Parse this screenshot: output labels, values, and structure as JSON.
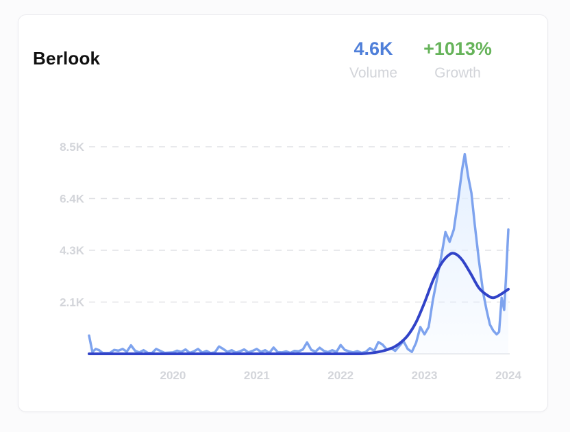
{
  "card": {
    "title": "Berlook",
    "volume": {
      "value": "4.6K",
      "label": "Volume"
    },
    "growth": {
      "value": "+1013%",
      "label": "Growth"
    }
  },
  "colors": {
    "raw_line": "#7ea3ee",
    "trend_line": "#3143c8",
    "area_fill": "#e3efff",
    "grid": "#e1e2e6",
    "volume_value": "#4f7fd9",
    "growth_value": "#66b35a"
  },
  "chart_data": {
    "type": "line",
    "title": "",
    "xlabel": "",
    "ylabel": "",
    "ylim": [
      0,
      8500
    ],
    "xlim": [
      2019.0,
      2024.0
    ],
    "grid": true,
    "y_ticks": [
      {
        "value": 2125,
        "label": "2.1K"
      },
      {
        "value": 4250,
        "label": "4.3K"
      },
      {
        "value": 6375,
        "label": "6.4K"
      },
      {
        "value": 8500,
        "label": "8.5K"
      }
    ],
    "x_ticks": [
      {
        "value": 2020,
        "label": "2020"
      },
      {
        "value": 2021,
        "label": "2021"
      },
      {
        "value": 2022,
        "label": "2022"
      },
      {
        "value": 2023,
        "label": "2023"
      },
      {
        "value": 2024,
        "label": "2024"
      }
    ],
    "series": [
      {
        "role": "raw",
        "points": [
          [
            2019.0,
            750
          ],
          [
            2019.04,
            80
          ],
          [
            2019.08,
            200
          ],
          [
            2019.12,
            150
          ],
          [
            2019.16,
            40
          ],
          [
            2019.2,
            30
          ],
          [
            2019.25,
            40
          ],
          [
            2019.3,
            160
          ],
          [
            2019.35,
            130
          ],
          [
            2019.4,
            200
          ],
          [
            2019.45,
            90
          ],
          [
            2019.5,
            350
          ],
          [
            2019.55,
            120
          ],
          [
            2019.6,
            60
          ],
          [
            2019.65,
            150
          ],
          [
            2019.7,
            40
          ],
          [
            2019.75,
            30
          ],
          [
            2019.8,
            200
          ],
          [
            2019.85,
            120
          ],
          [
            2019.9,
            40
          ],
          [
            2019.95,
            50
          ],
          [
            2020.0,
            60
          ],
          [
            2020.05,
            130
          ],
          [
            2020.1,
            80
          ],
          [
            2020.15,
            180
          ],
          [
            2020.2,
            40
          ],
          [
            2020.25,
            100
          ],
          [
            2020.3,
            200
          ],
          [
            2020.35,
            50
          ],
          [
            2020.4,
            120
          ],
          [
            2020.45,
            30
          ],
          [
            2020.5,
            60
          ],
          [
            2020.55,
            300
          ],
          [
            2020.6,
            200
          ],
          [
            2020.65,
            80
          ],
          [
            2020.7,
            150
          ],
          [
            2020.75,
            50
          ],
          [
            2020.8,
            100
          ],
          [
            2020.85,
            180
          ],
          [
            2020.9,
            60
          ],
          [
            2020.95,
            120
          ],
          [
            2021.0,
            200
          ],
          [
            2021.05,
            80
          ],
          [
            2021.1,
            150
          ],
          [
            2021.15,
            40
          ],
          [
            2021.2,
            260
          ],
          [
            2021.25,
            70
          ],
          [
            2021.3,
            60
          ],
          [
            2021.35,
            100
          ],
          [
            2021.4,
            40
          ],
          [
            2021.45,
            120
          ],
          [
            2021.5,
            100
          ],
          [
            2021.55,
            180
          ],
          [
            2021.6,
            470
          ],
          [
            2021.65,
            160
          ],
          [
            2021.7,
            90
          ],
          [
            2021.75,
            250
          ],
          [
            2021.8,
            120
          ],
          [
            2021.85,
            70
          ],
          [
            2021.9,
            150
          ],
          [
            2021.95,
            80
          ],
          [
            2022.0,
            360
          ],
          [
            2022.05,
            160
          ],
          [
            2022.1,
            100
          ],
          [
            2022.15,
            60
          ],
          [
            2022.2,
            110
          ],
          [
            2022.25,
            40
          ],
          [
            2022.3,
            80
          ],
          [
            2022.35,
            230
          ],
          [
            2022.4,
            120
          ],
          [
            2022.45,
            480
          ],
          [
            2022.5,
            380
          ],
          [
            2022.55,
            180
          ],
          [
            2022.6,
            240
          ],
          [
            2022.65,
            120
          ],
          [
            2022.7,
            320
          ],
          [
            2022.75,
            520
          ],
          [
            2022.8,
            200
          ],
          [
            2022.85,
            80
          ],
          [
            2022.9,
            460
          ],
          [
            2022.95,
            1100
          ],
          [
            2023.0,
            800
          ],
          [
            2023.05,
            1100
          ],
          [
            2023.1,
            2200
          ],
          [
            2023.15,
            3100
          ],
          [
            2023.2,
            4000
          ],
          [
            2023.25,
            5000
          ],
          [
            2023.3,
            4600
          ],
          [
            2023.35,
            5100
          ],
          [
            2023.4,
            6300
          ],
          [
            2023.45,
            7600
          ],
          [
            2023.48,
            8200
          ],
          [
            2023.52,
            7300
          ],
          [
            2023.56,
            6600
          ],
          [
            2023.6,
            5300
          ],
          [
            2023.65,
            3800
          ],
          [
            2023.7,
            2500
          ],
          [
            2023.74,
            1800
          ],
          [
            2023.78,
            1200
          ],
          [
            2023.82,
            950
          ],
          [
            2023.86,
            800
          ],
          [
            2023.89,
            900
          ],
          [
            2023.92,
            2300
          ],
          [
            2023.95,
            1800
          ],
          [
            2023.97,
            3000
          ],
          [
            2024.0,
            5100
          ]
        ]
      },
      {
        "role": "trend",
        "points": [
          [
            2019.0,
            0
          ],
          [
            2020.0,
            0
          ],
          [
            2021.0,
            0
          ],
          [
            2022.0,
            0
          ],
          [
            2022.25,
            0
          ],
          [
            2022.45,
            80
          ],
          [
            2022.6,
            220
          ],
          [
            2022.7,
            420
          ],
          [
            2022.8,
            750
          ],
          [
            2022.9,
            1300
          ],
          [
            2023.0,
            2100
          ],
          [
            2023.1,
            3000
          ],
          [
            2023.2,
            3700
          ],
          [
            2023.3,
            4080
          ],
          [
            2023.37,
            4100
          ],
          [
            2023.45,
            3850
          ],
          [
            2023.55,
            3300
          ],
          [
            2023.65,
            2700
          ],
          [
            2023.75,
            2400
          ],
          [
            2023.82,
            2300
          ],
          [
            2023.9,
            2420
          ],
          [
            2024.0,
            2650
          ]
        ]
      }
    ]
  }
}
